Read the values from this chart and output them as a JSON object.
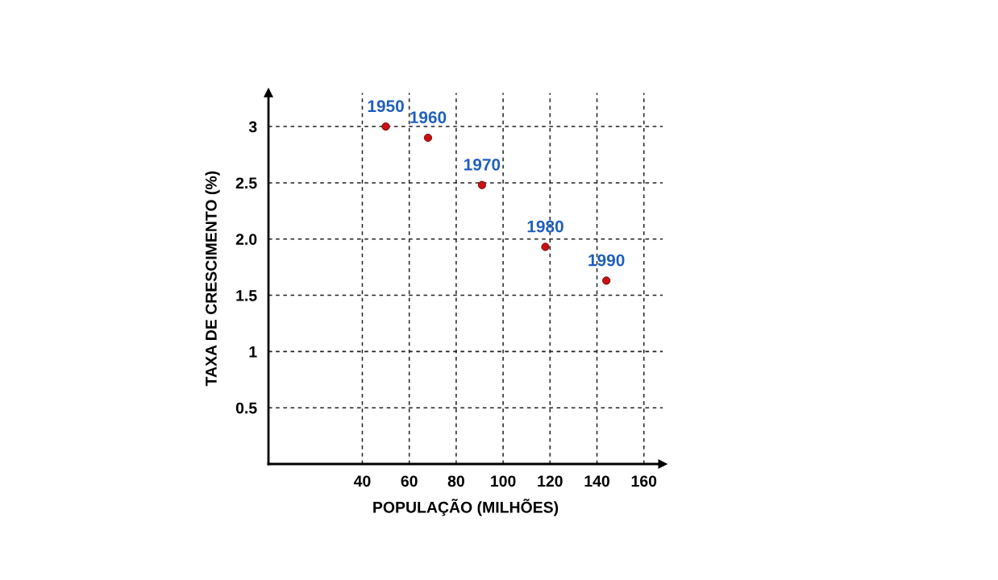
{
  "chart_data": {
    "type": "scatter",
    "xlabel": "POPULAÇÃO (MILHÕES)",
    "ylabel": "TAXA DE CRESCIMENTO (%)",
    "x": [
      50,
      68,
      91,
      118,
      144
    ],
    "series": [
      {
        "color": "#cc1111",
        "values": [
          3.0,
          2.9,
          2.48,
          1.93,
          1.63
        ]
      }
    ],
    "annotations": [
      {
        "text": "1950",
        "x": 50,
        "y": 3.0
      },
      {
        "text": "1960",
        "x": 68,
        "y": 2.9
      },
      {
        "text": "1970",
        "x": 91,
        "y": 2.48
      },
      {
        "text": "1980",
        "x": 118,
        "y": 1.93
      },
      {
        "text": "1990",
        "x": 144,
        "y": 1.63
      }
    ],
    "xlim": [
      0,
      168
    ],
    "ylim": [
      0,
      3.3
    ],
    "xticks": [
      40,
      60,
      80,
      100,
      120,
      140,
      160
    ],
    "yticks": [
      {
        "value": 0.5,
        "label": "0.5"
      },
      {
        "value": 1,
        "label": "1"
      },
      {
        "value": 1.5,
        "label": "1.5"
      },
      {
        "value": 2,
        "label": "2.0"
      },
      {
        "value": 2.5,
        "label": "2.5"
      },
      {
        "value": 3,
        "label": "3"
      }
    ],
    "grid": true,
    "marker": "circle"
  }
}
